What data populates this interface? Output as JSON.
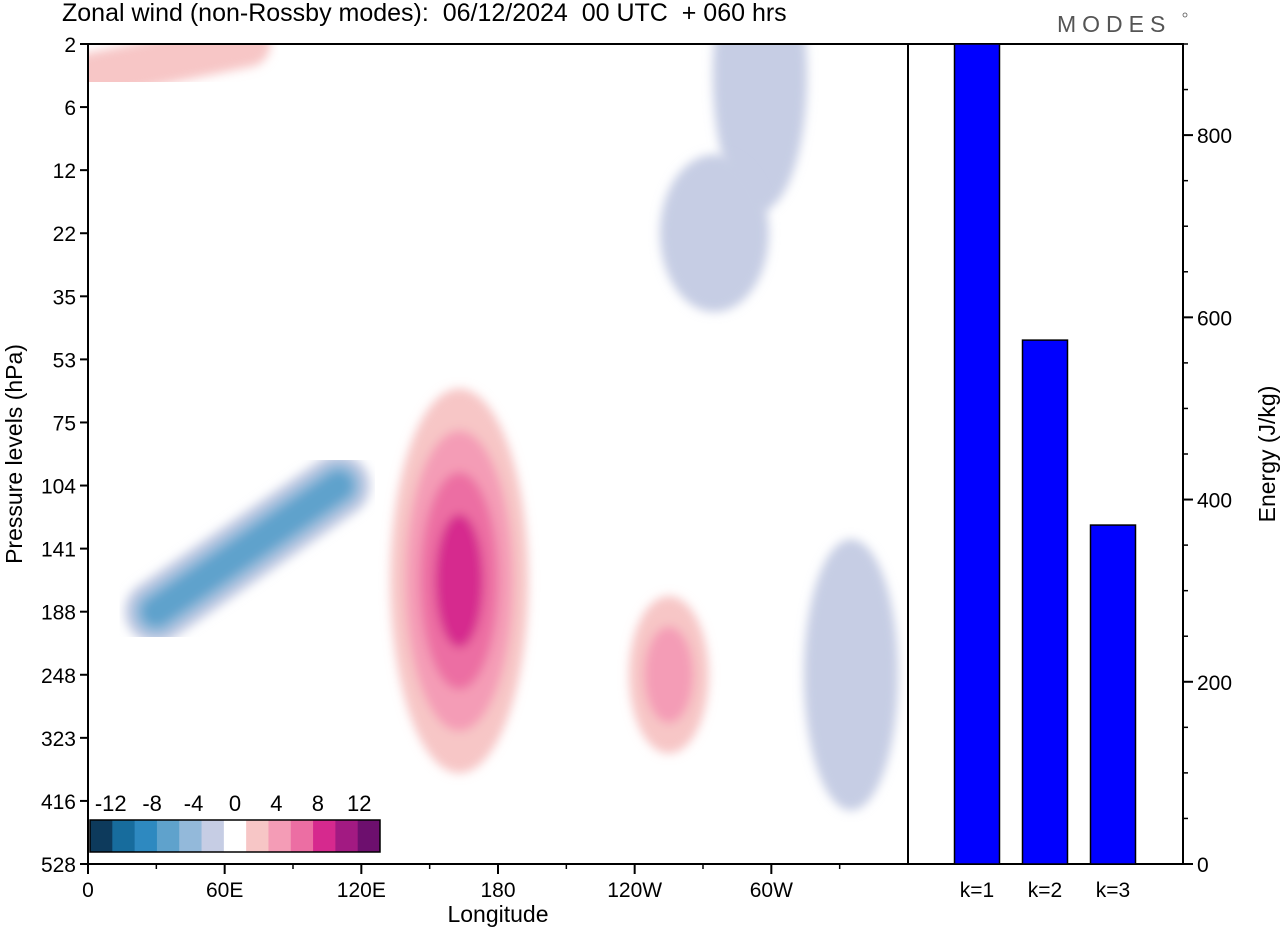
{
  "title": "Zonal wind (non-Rossby modes):  06/12/2024  00 UTC  + 060 hrs",
  "logo": "MODES",
  "chart_data": [
    {
      "type": "heatmap",
      "title": "Zonal wind (non-Rossby modes):  06/12/2024  00 UTC  + 060 hrs",
      "xlabel": "Longitude",
      "ylabel": "Pressure levels (hPa)",
      "x_ticks": [
        "0",
        "60E",
        "120E",
        "180",
        "120W",
        "60W"
      ],
      "x_tick_values": [
        0,
        60,
        120,
        180,
        240,
        300
      ],
      "x_range": [
        0,
        360
      ],
      "y_ticks": [
        "2",
        "6",
        "12",
        "22",
        "35",
        "53",
        "75",
        "104",
        "141",
        "188",
        "248",
        "323",
        "416",
        "528"
      ],
      "colorbar": {
        "labels": [
          "-12",
          "-8",
          "-4",
          "0",
          "4",
          "8",
          "12"
        ],
        "label_values": [
          -12,
          -8,
          -4,
          0,
          4,
          8,
          12
        ],
        "levels": [
          -14,
          -12,
          -10,
          -8,
          -6,
          -4,
          -2,
          2,
          4,
          6,
          8,
          10,
          12,
          14
        ],
        "colors": [
          "#0d3a5c",
          "#176c9d",
          "#2e89c0",
          "#5fa2cc",
          "#93b9da",
          "#c6cde4",
          "#ffffff",
          "#f7c6c6",
          "#f49cb6",
          "#ec6ea3",
          "#d6298e",
          "#a21a82",
          "#6d0f6e"
        ]
      },
      "features": [
        {
          "shape": "band",
          "value": -8,
          "from": [
            30,
            188
          ],
          "to": [
            110,
            104
          ],
          "width": 8
        },
        {
          "shape": "blob",
          "value": 10,
          "center": [
            163,
            165
          ],
          "size": [
            14,
            3
          ]
        },
        {
          "shape": "blob",
          "value": 6,
          "center": [
            255,
            248
          ],
          "size": [
            6,
            1
          ]
        },
        {
          "shape": "blob",
          "value": -4,
          "center": [
            335,
            248
          ],
          "size": [
            8,
            2
          ]
        },
        {
          "shape": "band",
          "value": 4,
          "from": [
            2,
            4
          ],
          "to": [
            70,
            2
          ],
          "width": 5
        },
        {
          "shape": "blob",
          "value": -4,
          "center": [
            295,
            4
          ],
          "size": [
            8,
            2
          ]
        },
        {
          "shape": "blob",
          "value": -4,
          "center": [
            275,
            22
          ],
          "size": [
            10,
            1
          ]
        }
      ]
    },
    {
      "type": "bar",
      "categories": [
        "k=1",
        "k=2",
        "k=3"
      ],
      "values": [
        900,
        575,
        372
      ],
      "ylabel": "Energy (J/kg)",
      "ylim": [
        0,
        900
      ],
      "y_ticks": [
        0,
        200,
        400,
        600,
        800
      ],
      "bar_color": "#0000ff"
    }
  ]
}
